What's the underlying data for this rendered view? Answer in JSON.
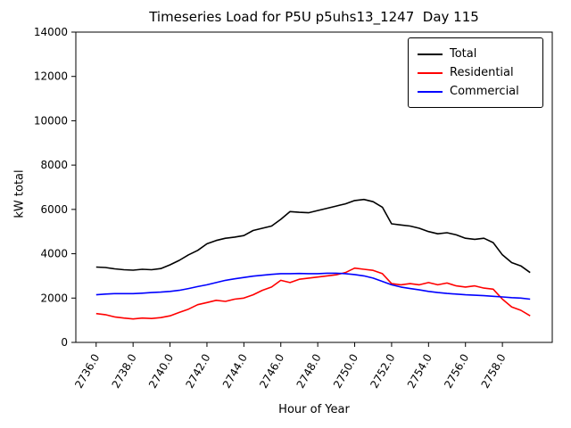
{
  "chart_data": {
    "type": "line",
    "title": "Timeseries Load for P5U p5uhs13_1247  Day 115",
    "xlabel": "Hour of Year",
    "ylabel": "kW total",
    "xlim": [
      2734.9,
      2760.7
    ],
    "ylim": [
      0,
      14000
    ],
    "grid": false,
    "legend_position": "upper right",
    "x_ticks": {
      "values": [
        2736,
        2738,
        2740,
        2742,
        2744,
        2746,
        2748,
        2750,
        2752,
        2754,
        2756,
        2758
      ],
      "labels": [
        "2736.0",
        "2738.0",
        "2740.0",
        "2742.0",
        "2744.0",
        "2746.0",
        "2748.0",
        "2750.0",
        "2752.0",
        "2754.0",
        "2756.0",
        "2758.0"
      ]
    },
    "y_ticks": {
      "values": [
        0,
        2000,
        4000,
        6000,
        8000,
        10000,
        12000,
        14000
      ],
      "labels": [
        "0",
        "2000",
        "4000",
        "6000",
        "8000",
        "10000",
        "12000",
        "14000"
      ]
    },
    "x": [
      2736.0,
      2736.5,
      2737.0,
      2737.5,
      2738.0,
      2738.5,
      2739.0,
      2739.5,
      2740.0,
      2740.5,
      2741.0,
      2741.5,
      2742.0,
      2742.5,
      2743.0,
      2743.5,
      2744.0,
      2744.5,
      2745.0,
      2745.5,
      2746.0,
      2746.5,
      2747.0,
      2747.5,
      2748.0,
      2748.5,
      2749.0,
      2749.5,
      2750.0,
      2750.5,
      2751.0,
      2751.5,
      2752.0,
      2752.5,
      2753.0,
      2753.5,
      2754.0,
      2754.5,
      2755.0,
      2755.5,
      2756.0,
      2756.5,
      2757.0,
      2757.5,
      2758.0,
      2758.5,
      2759.0,
      2759.5
    ],
    "series": [
      {
        "name": "Total",
        "color": "#000000",
        "values": [
          3400,
          3380,
          3320,
          3280,
          3260,
          3300,
          3280,
          3330,
          3500,
          3700,
          3950,
          4150,
          4450,
          4600,
          4700,
          4750,
          4820,
          5050,
          5150,
          5250,
          5550,
          5900,
          5870,
          5850,
          5950,
          6050,
          6150,
          6250,
          6400,
          6450,
          6350,
          6100,
          5350,
          5300,
          5250,
          5150,
          5000,
          4900,
          4950,
          4850,
          4700,
          4650,
          4700,
          4500,
          3950,
          3600,
          3450,
          3150
        ]
      },
      {
        "name": "Residential",
        "color": "#ff0000",
        "values": [
          1300,
          1250,
          1150,
          1100,
          1060,
          1100,
          1080,
          1120,
          1200,
          1350,
          1500,
          1700,
          1800,
          1900,
          1850,
          1950,
          2000,
          2150,
          2350,
          2500,
          2800,
          2700,
          2850,
          2900,
          2950,
          3000,
          3050,
          3150,
          3350,
          3300,
          3250,
          3100,
          2650,
          2600,
          2650,
          2600,
          2700,
          2600,
          2680,
          2550,
          2500,
          2550,
          2450,
          2400,
          1950,
          1600,
          1450,
          1200
        ]
      },
      {
        "name": "Commercial",
        "color": "#0000ff",
        "values": [
          2150,
          2180,
          2200,
          2200,
          2200,
          2220,
          2250,
          2270,
          2300,
          2350,
          2430,
          2520,
          2600,
          2700,
          2800,
          2870,
          2930,
          2990,
          3030,
          3070,
          3100,
          3100,
          3110,
          3100,
          3100,
          3120,
          3120,
          3100,
          3060,
          3000,
          2900,
          2750,
          2600,
          2500,
          2430,
          2370,
          2300,
          2250,
          2210,
          2180,
          2150,
          2130,
          2110,
          2080,
          2050,
          2020,
          2000,
          1950
        ]
      }
    ]
  }
}
